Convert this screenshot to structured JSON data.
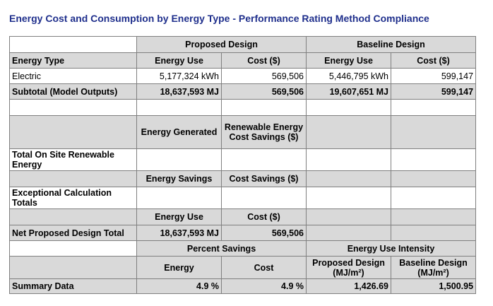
{
  "title": "Energy Cost and Consumption by Energy Type - Performance Rating Method Compliance",
  "groups": {
    "proposed_design": "Proposed Design",
    "baseline_design": "Baseline Design",
    "percent_savings": "Percent Savings",
    "energy_use_intensity": "Energy Use Intensity"
  },
  "columns": {
    "energy_type": "Energy Type",
    "energy_use": "Energy Use",
    "cost": "Cost ($)",
    "energy_generated": "Energy Generated",
    "renewable_cost_savings": "Renewable Energy Cost Savings ($)",
    "energy_savings": "Energy Savings",
    "cost_savings": "Cost Savings ($)",
    "energy": "Energy",
    "cost_plain": "Cost",
    "proposed_eui": "Proposed Design (MJ/m²)",
    "baseline_eui": "Baseline Design (MJ/m²)"
  },
  "rows": {
    "electric": {
      "label": "Electric",
      "proposed_use": "5,177,324 kWh",
      "proposed_cost": "569,506",
      "baseline_use": "5,446,795 kWh",
      "baseline_cost": "599,147"
    },
    "subtotal": {
      "label": "Subtotal (Model Outputs)",
      "proposed_use": "18,637,593 MJ",
      "proposed_cost": "569,506",
      "baseline_use": "19,607,651 MJ",
      "baseline_cost": "599,147"
    },
    "renewable": {
      "label": "Total On Site Renewable Energy"
    },
    "exceptional": {
      "label": "Exceptional Calculation Totals"
    },
    "net": {
      "label": "Net Proposed Design Total",
      "energy_use": "18,637,593 MJ",
      "cost": "569,506"
    },
    "summary": {
      "label": "Summary Data",
      "energy_pct": "4.9 %",
      "cost_pct": "4.9 %",
      "proposed_eui": "1,426.69",
      "baseline_eui": "1,500.95"
    }
  }
}
